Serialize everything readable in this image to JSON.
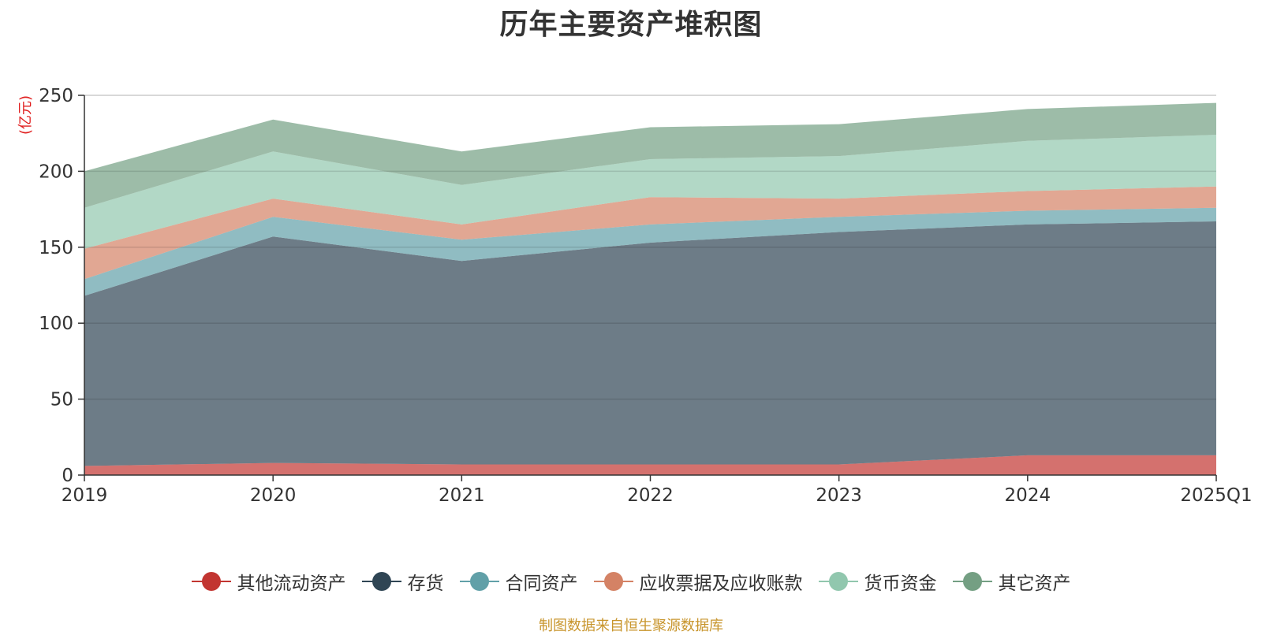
{
  "title": "历年主要资产堆积图",
  "source_note": "制图数据来自恒生聚源数据库",
  "chart_data": {
    "type": "area",
    "stacked": true,
    "title": "历年主要资产堆积图",
    "ylabel": "(亿元)",
    "xlabel": "",
    "categories": [
      "2019",
      "2020",
      "2021",
      "2022",
      "2023",
      "2024",
      "2025Q1"
    ],
    "ylim": [
      0,
      250
    ],
    "yticks": [
      0,
      50,
      100,
      150,
      200,
      250
    ],
    "grid": true,
    "legend_position": "bottom",
    "series": [
      {
        "name": "其他流动资产",
        "color": "#c23531",
        "values": [
          6,
          8,
          7,
          7,
          7,
          13,
          13
        ]
      },
      {
        "name": "存货",
        "color": "#2f4554",
        "values": [
          112,
          149,
          134,
          146,
          153,
          152,
          154
        ]
      },
      {
        "name": "合同资产",
        "color": "#61a0a8",
        "values": [
          11,
          13,
          14,
          12,
          10,
          9,
          9
        ]
      },
      {
        "name": "应收票据及应收账款",
        "color": "#d48265",
        "values": [
          20,
          12,
          10,
          18,
          12,
          13,
          14
        ]
      },
      {
        "name": "货币资金",
        "color": "#91c7ae",
        "values": [
          27,
          31,
          26,
          25,
          28,
          33,
          34
        ]
      },
      {
        "name": "其它资产",
        "color": "#749f83",
        "values": [
          24,
          21,
          22,
          21,
          21,
          21,
          21
        ]
      }
    ]
  }
}
